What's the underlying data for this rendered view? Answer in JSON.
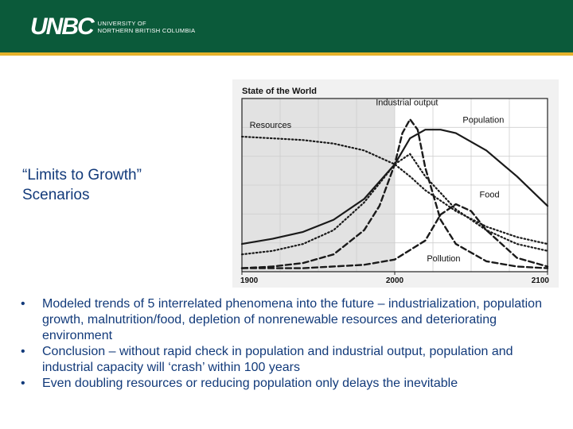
{
  "header": {
    "logo_mark": "UNBC",
    "logo_line1": "UNIVERSITY OF",
    "logo_line2": "NORTHERN BRITISH COLUMBIA",
    "colors": {
      "band": "#0b5a3a",
      "rule": "#e5b22a"
    }
  },
  "slide": {
    "title_line1": "“Limits to Growth”",
    "title_line2": "Scenarios",
    "text_color": "#123a7a"
  },
  "bullets": [
    "Modeled trends of 5 interrelated phenomena into the future – industrialization, population growth, malnutrition/food, depletion of nonrenewable resources and deteriorating environment",
    "Conclusion – without rapid check in population and industrial output, population and industrial capacity will ‘crash’ within 100 years",
    "Even doubling resources or reducing population only delays the inevitable"
  ],
  "bullet_symbol": "•",
  "chart_data": {
    "type": "line",
    "title": "State of the World",
    "xlabel": "",
    "ylabel": "",
    "x_ticks": [
      "1900",
      "2000",
      "2100"
    ],
    "xlim": [
      1900,
      2100
    ],
    "ylim": [
      0,
      1
    ],
    "grid": true,
    "shaded_region": [
      1900,
      2000
    ],
    "series": [
      {
        "name": "Resources",
        "style": "dotted",
        "x": [
          1900,
          1920,
          1940,
          1960,
          1980,
          1990,
          2000,
          2010,
          2020,
          2040,
          2060,
          2080,
          2100
        ],
        "y": [
          0.78,
          0.77,
          0.76,
          0.74,
          0.7,
          0.66,
          0.62,
          0.55,
          0.47,
          0.35,
          0.26,
          0.2,
          0.16
        ]
      },
      {
        "name": "Industrial output",
        "style": "dashed",
        "x": [
          1900,
          1920,
          1940,
          1960,
          1980,
          1990,
          2000,
          2005,
          2010,
          2015,
          2020,
          2030,
          2040,
          2060,
          2080,
          2100
        ],
        "y": [
          0.02,
          0.03,
          0.05,
          0.1,
          0.24,
          0.38,
          0.62,
          0.8,
          0.88,
          0.82,
          0.6,
          0.3,
          0.16,
          0.06,
          0.03,
          0.02
        ]
      },
      {
        "name": "Population",
        "style": "solid",
        "x": [
          1900,
          1920,
          1940,
          1960,
          1980,
          2000,
          2010,
          2020,
          2030,
          2040,
          2060,
          2080,
          2100
        ],
        "y": [
          0.16,
          0.19,
          0.23,
          0.3,
          0.42,
          0.62,
          0.77,
          0.82,
          0.82,
          0.8,
          0.7,
          0.55,
          0.38
        ]
      },
      {
        "name": "Food",
        "style": "dotted",
        "x": [
          1900,
          1920,
          1940,
          1960,
          1980,
          2000,
          2010,
          2020,
          2040,
          2060,
          2080,
          2100
        ],
        "y": [
          0.1,
          0.12,
          0.16,
          0.24,
          0.4,
          0.62,
          0.68,
          0.55,
          0.36,
          0.24,
          0.16,
          0.12
        ]
      },
      {
        "name": "Pollution",
        "style": "dashed",
        "x": [
          1900,
          1940,
          1980,
          2000,
          2020,
          2030,
          2040,
          2050,
          2060,
          2080,
          2100
        ],
        "y": [
          0.02,
          0.02,
          0.04,
          0.07,
          0.18,
          0.33,
          0.39,
          0.35,
          0.24,
          0.08,
          0.03
        ]
      }
    ],
    "annotations": [
      "Industrial output",
      "Population",
      "Resources",
      "Food",
      "Pollution"
    ]
  }
}
